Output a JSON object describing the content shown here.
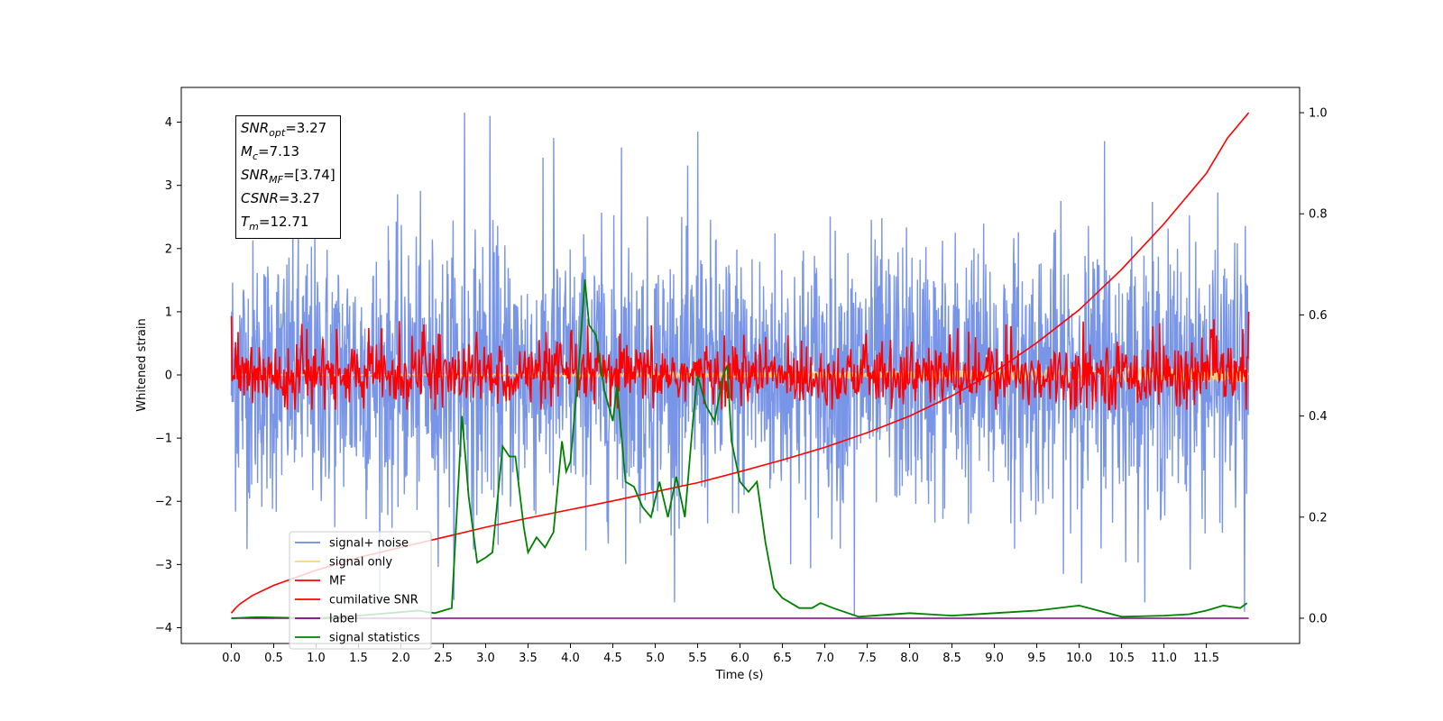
{
  "chart_data": {
    "type": "line",
    "xlabel": "Time (s)",
    "ylabel": "Whitened strain",
    "xlim": [
      -0.59,
      12.6
    ],
    "ylim": [
      -4.25,
      4.55
    ],
    "y2lim": [
      -0.05,
      1.05
    ],
    "x_ticks": [
      "0.0",
      "0.5",
      "1.0",
      "1.5",
      "2.0",
      "2.5",
      "3.0",
      "3.5",
      "4.0",
      "4.5",
      "5.0",
      "5.5",
      "6.0",
      "6.5",
      "7.0",
      "7.5",
      "8.0",
      "8.5",
      "9.0",
      "9.5",
      "10.0",
      "10.5",
      "11.0",
      "11.5"
    ],
    "y_ticks": [
      "4",
      "3",
      "2",
      "1",
      "0",
      "−1",
      "−2",
      "−3",
      "−4"
    ],
    "y2_ticks": [
      "1.0",
      "0.8",
      "0.6",
      "0.4",
      "0.2",
      "0.0"
    ],
    "legend": {
      "placement": "lower-left",
      "entries": [
        {
          "label": "signal+ noise",
          "color": "#6a89e4"
        },
        {
          "label": "signal only",
          "color": "#ffd27f"
        },
        {
          "label": "MF",
          "color": "#ff0000"
        },
        {
          "label": "cumilative SNR",
          "color": "#ff0000"
        },
        {
          "label": "label",
          "color": "#800080"
        },
        {
          "label": "signal statistics",
          "color": "#008000"
        }
      ]
    },
    "annotation": [
      {
        "name": "SNR",
        "sub": "opt",
        "value": "=3.27"
      },
      {
        "name": "M",
        "sub": "c",
        "value": "=7.13"
      },
      {
        "name": "SNR",
        "sub": "MF",
        "value": "=[3.74]"
      },
      {
        "name": "CSNR",
        "sub": "",
        "value": "=3.27"
      },
      {
        "name": "T",
        "sub": "m",
        "value": "=12.71"
      }
    ],
    "series": [
      {
        "name": "signal+ noise",
        "color": "#6a89e4",
        "axis": "left",
        "kind": "noise",
        "x_range": [
          0,
          12
        ],
        "std": 1.05,
        "extreme_peaks": [
          [
            2.75,
            4.15
          ],
          [
            3.05,
            4.1
          ],
          [
            3.8,
            3.75
          ],
          [
            5.5,
            3.85
          ],
          [
            4.6,
            3.6
          ],
          [
            7.35,
            -3.8
          ],
          [
            10.3,
            3.7
          ],
          [
            11.95,
            -3.75
          ]
        ]
      },
      {
        "name": "signal only",
        "color": "#ffd27f",
        "axis": "left",
        "kind": "chirp",
        "x_range": [
          0,
          12
        ],
        "amplitude_end": 0.12
      },
      {
        "name": "MF",
        "color": "#ff0000",
        "axis": "left",
        "kind": "noise",
        "x_range": [
          0,
          12
        ],
        "std": 0.25,
        "endpoints": [
          [
            0.0,
            0.93
          ],
          [
            11.98,
            1.0
          ]
        ]
      },
      {
        "name": "cumilative SNR",
        "color": "#ff0000",
        "axis": "right",
        "x": [
          0,
          0.05,
          0.1,
          0.25,
          0.5,
          1.0,
          1.5,
          2.0,
          2.5,
          3.0,
          3.5,
          4.0,
          4.5,
          5.0,
          5.5,
          6.0,
          6.5,
          7.0,
          7.5,
          8.0,
          8.5,
          9.0,
          9.5,
          10.0,
          10.5,
          11.0,
          11.5,
          11.75,
          12.0
        ],
        "y": [
          0.01,
          0.02,
          0.028,
          0.045,
          0.065,
          0.095,
          0.12,
          0.14,
          0.16,
          0.18,
          0.198,
          0.215,
          0.232,
          0.25,
          0.268,
          0.29,
          0.313,
          0.338,
          0.367,
          0.4,
          0.44,
          0.487,
          0.545,
          0.61,
          0.69,
          0.78,
          0.88,
          0.95,
          1.0
        ]
      },
      {
        "name": "label",
        "color": "#800080",
        "axis": "right",
        "x": [
          0,
          12
        ],
        "y": [
          0.0,
          0.0
        ]
      },
      {
        "name": "signal statistics",
        "color": "#008000",
        "axis": "right",
        "x": [
          0,
          0.3,
          1.0,
          1.5,
          2.0,
          2.2,
          2.4,
          2.6,
          2.72,
          2.8,
          2.9,
          3.0,
          3.08,
          3.2,
          3.28,
          3.35,
          3.45,
          3.5,
          3.6,
          3.7,
          3.8,
          3.9,
          3.95,
          4.0,
          4.1,
          4.17,
          4.22,
          4.3,
          4.4,
          4.5,
          4.55,
          4.65,
          4.75,
          4.85,
          4.95,
          5.05,
          5.15,
          5.25,
          5.35,
          5.45,
          5.5,
          5.6,
          5.7,
          5.8,
          5.85,
          5.9,
          6.0,
          6.1,
          6.2,
          6.3,
          6.4,
          6.5,
          6.7,
          6.85,
          6.95,
          7.1,
          7.4,
          8.0,
          8.5,
          9.0,
          9.5,
          10.0,
          10.5,
          11.0,
          11.3,
          11.5,
          11.7,
          11.9,
          11.98
        ],
        "y": [
          0.0,
          0.002,
          0.0,
          0.005,
          0.012,
          0.015,
          0.01,
          0.02,
          0.4,
          0.24,
          0.11,
          0.12,
          0.13,
          0.34,
          0.32,
          0.32,
          0.18,
          0.13,
          0.16,
          0.14,
          0.17,
          0.35,
          0.29,
          0.31,
          0.5,
          0.67,
          0.58,
          0.56,
          0.45,
          0.39,
          0.46,
          0.27,
          0.26,
          0.22,
          0.2,
          0.27,
          0.2,
          0.28,
          0.2,
          0.4,
          0.48,
          0.42,
          0.39,
          0.48,
          0.5,
          0.35,
          0.27,
          0.25,
          0.27,
          0.15,
          0.06,
          0.04,
          0.02,
          0.02,
          0.03,
          0.02,
          0.003,
          0.01,
          0.005,
          0.01,
          0.015,
          0.025,
          0.003,
          0.005,
          0.008,
          0.015,
          0.025,
          0.02,
          0.03
        ]
      }
    ]
  }
}
